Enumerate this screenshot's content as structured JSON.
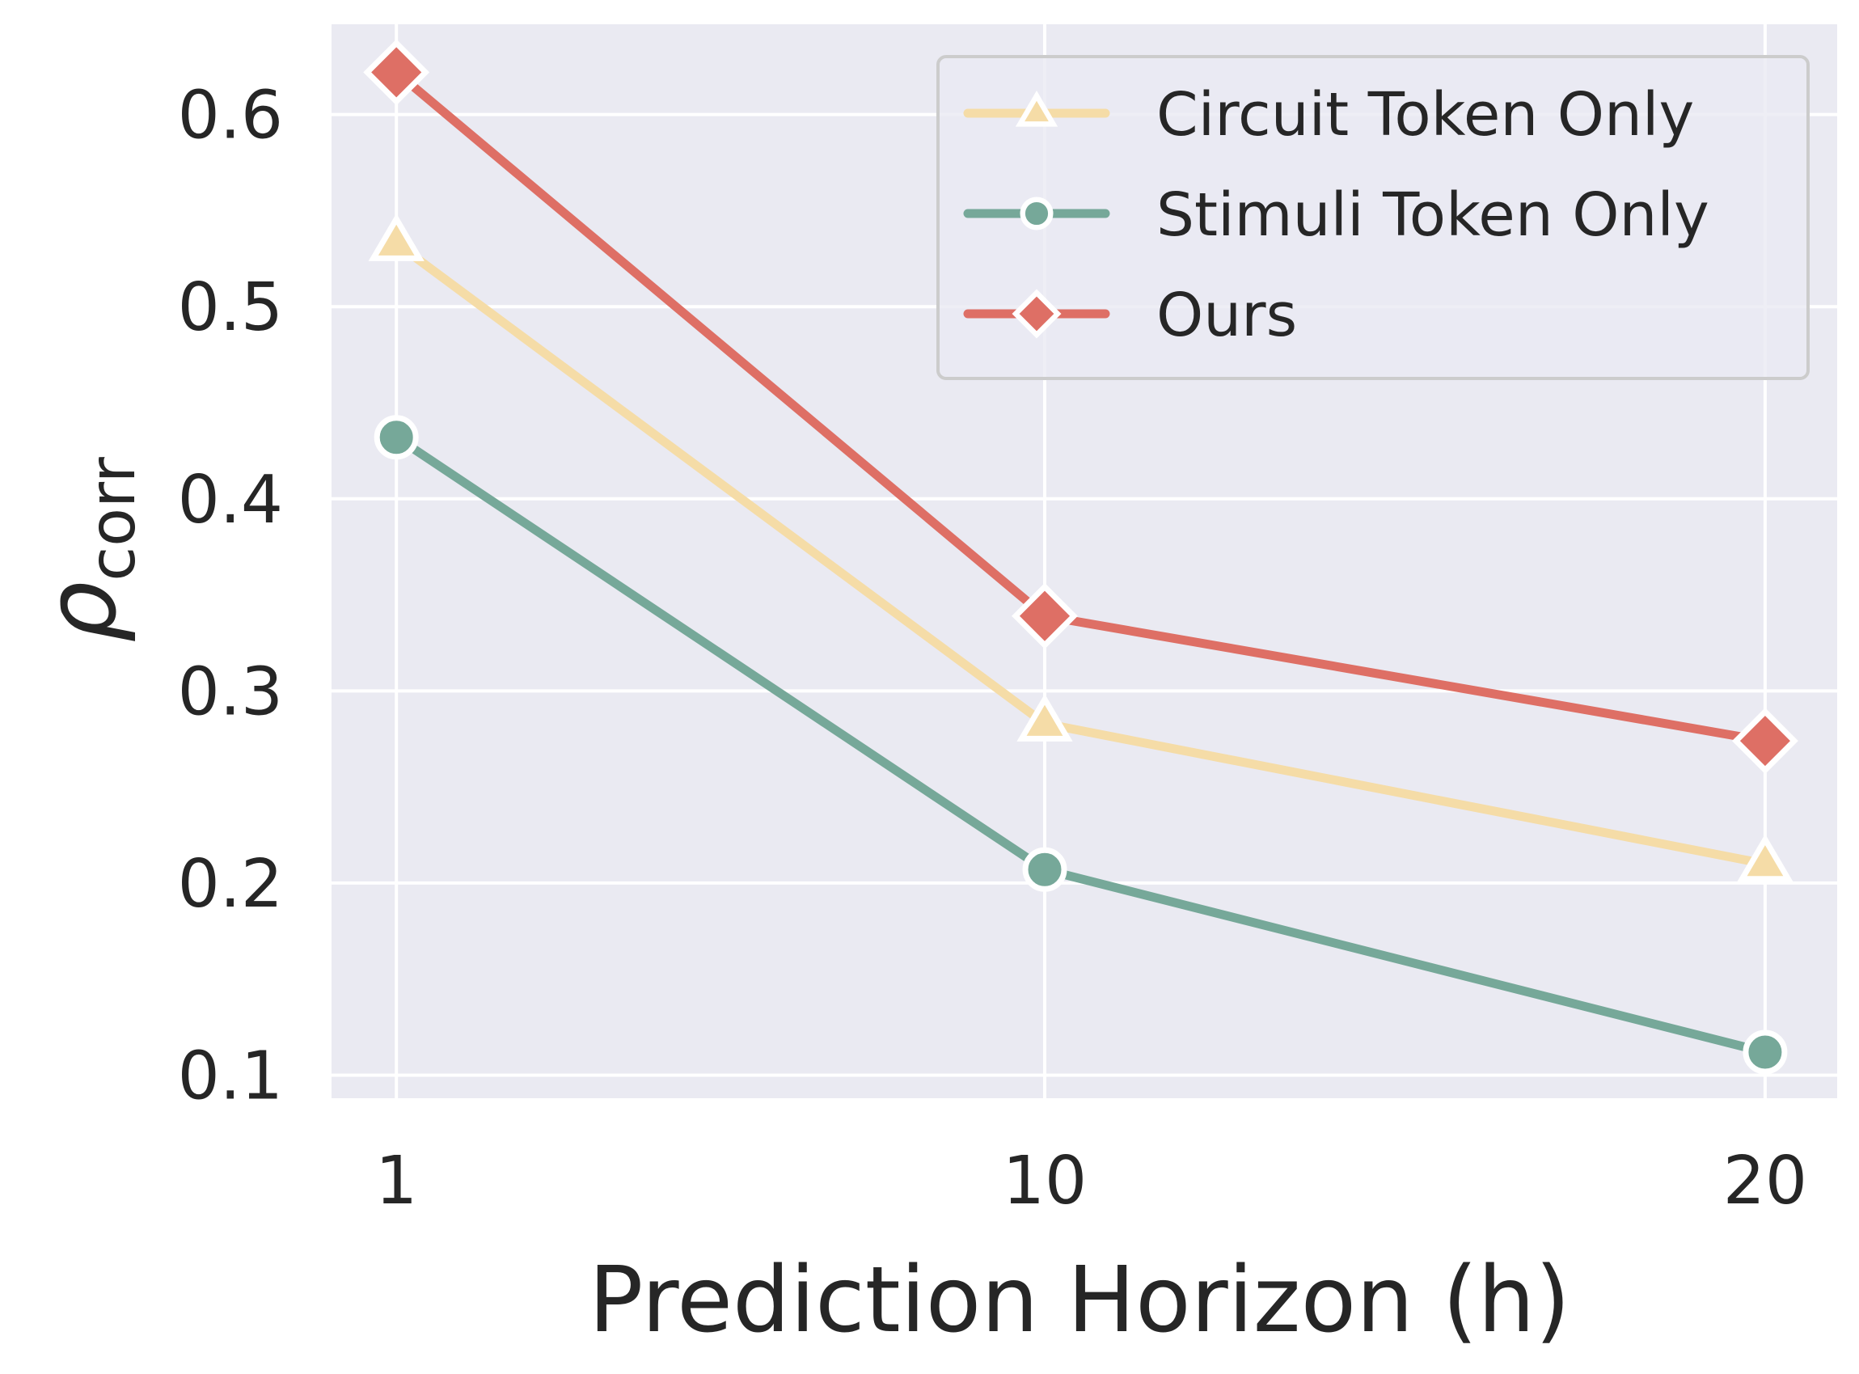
{
  "chart_data": {
    "type": "line",
    "title": "",
    "xlabel": "Prediction Horizon (h)",
    "ylabel_symbol": "ρ",
    "ylabel_subscript": "corr",
    "x": [
      1,
      10,
      20
    ],
    "x_tick_labels": [
      "1",
      "10",
      "20"
    ],
    "y_tick_labels": [
      "0.1",
      "0.2",
      "0.3",
      "0.4",
      "0.5",
      "0.6"
    ],
    "y_ticks": [
      0.1,
      0.2,
      0.3,
      0.4,
      0.5,
      0.6
    ],
    "xlim": [
      0.1,
      21
    ],
    "ylim": [
      0.088,
      0.647
    ],
    "grid": true,
    "legend_position": "top-right",
    "background": "#EAEAF2",
    "series": [
      {
        "name": "Circuit Token Only",
        "marker": "triangle",
        "color": "#F5DCA7",
        "values": [
          0.533,
          0.283,
          0.21
        ]
      },
      {
        "name": "Stimuli Token Only",
        "marker": "circle",
        "color": "#76A899",
        "values": [
          0.432,
          0.207,
          0.112
        ]
      },
      {
        "name": "Ours",
        "marker": "diamond",
        "color": "#DE6F65",
        "values": [
          0.622,
          0.339,
          0.274
        ]
      }
    ]
  }
}
